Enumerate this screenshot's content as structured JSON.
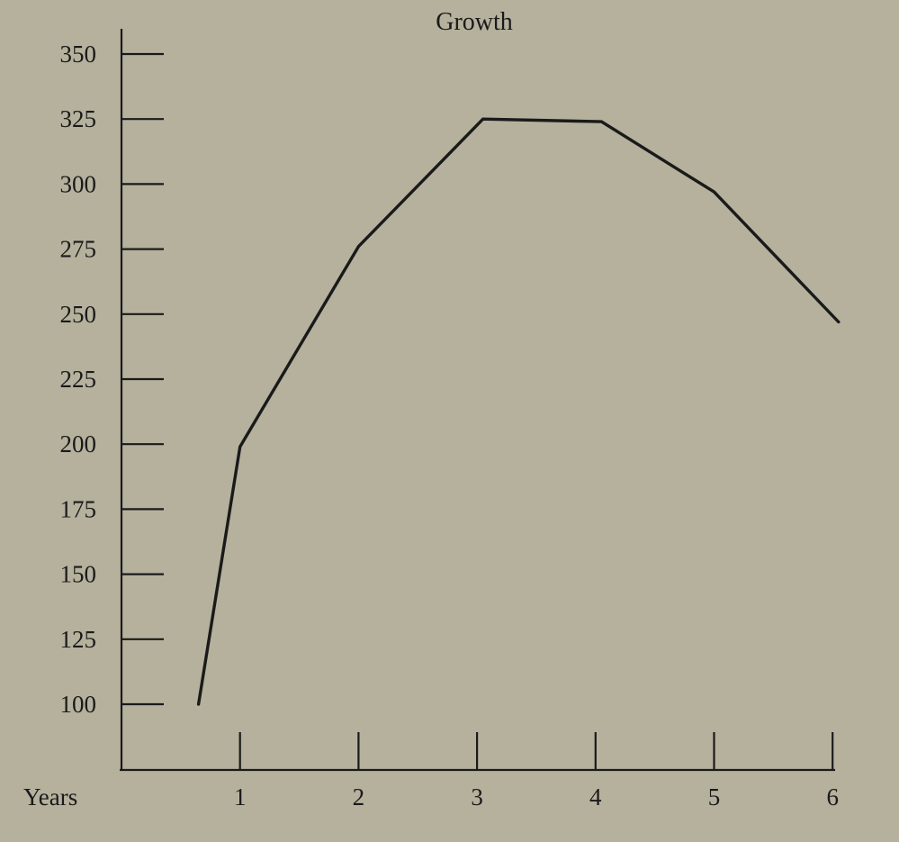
{
  "chart_data": {
    "type": "line",
    "title": "Growth",
    "xlabel": "Years",
    "ylabel": "",
    "x_ticks": [
      "1",
      "2",
      "3",
      "4",
      "5",
      "6"
    ],
    "y_ticks": [
      "100",
      "125",
      "150",
      "175",
      "200",
      "225",
      "250",
      "275",
      "300",
      "325",
      "350"
    ],
    "xlim": [
      0,
      6
    ],
    "ylim": [
      75,
      375
    ],
    "grid": false,
    "legend": "none",
    "series": [
      {
        "x": [
          0.65,
          1,
          2,
          3.05,
          4.05,
          5,
          6.05
        ],
        "y": [
          100,
          199,
          276,
          325,
          324,
          297,
          247
        ]
      }
    ],
    "colors": {
      "background": "#b5b19d",
      "ink": "#1a1a1a"
    }
  }
}
